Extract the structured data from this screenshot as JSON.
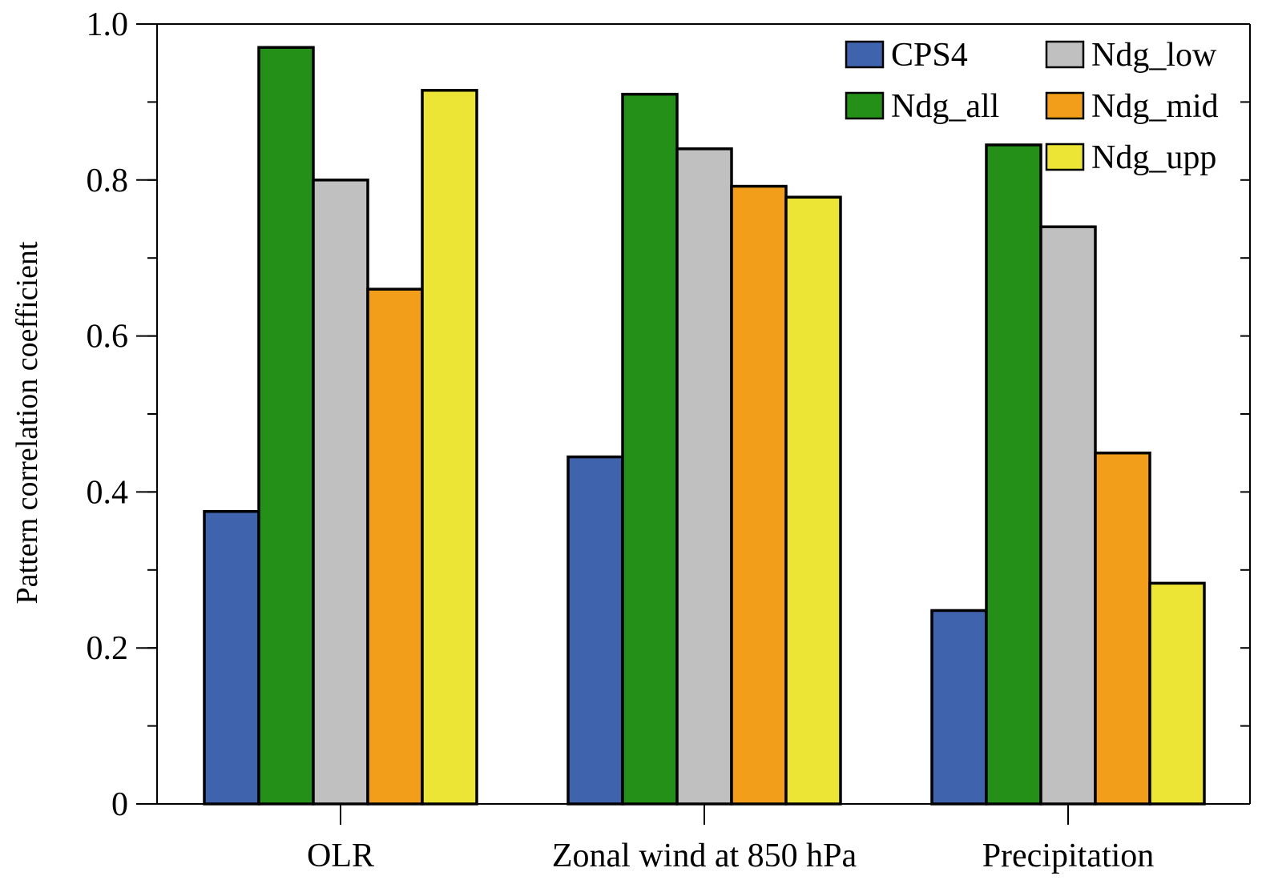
{
  "chart_data": {
    "type": "bar",
    "title": "",
    "xlabel": "",
    "ylabel": "Pattern correlation coefficient",
    "ylim": [
      0,
      1.0
    ],
    "yticks": [
      {
        "value": 0,
        "label": "0"
      },
      {
        "value": 0.2,
        "label": "0.2"
      },
      {
        "value": 0.4,
        "label": "0.4"
      },
      {
        "value": 0.6,
        "label": "0.6"
      },
      {
        "value": 0.8,
        "label": "0.8"
      },
      {
        "value": 1.0,
        "label": "1.0"
      }
    ],
    "minor_tick_step": 0.1,
    "grid": false,
    "legend_position": "top-right",
    "categories": [
      "OLR",
      "Zonal wind at 850 hPa",
      "Precipitation"
    ],
    "series": [
      {
        "name": "CPS4",
        "color": "#4063ae",
        "values": [
          0.375,
          0.445,
          0.248
        ]
      },
      {
        "name": "Ndg_all",
        "color": "#259018",
        "values": [
          0.97,
          0.91,
          0.845
        ]
      },
      {
        "name": "Ndg_low",
        "color": "#c0c0c0",
        "values": [
          0.8,
          0.84,
          0.74
        ]
      },
      {
        "name": "Ndg_mid",
        "color": "#f29e1a",
        "values": [
          0.66,
          0.792,
          0.45
        ]
      },
      {
        "name": "Ndg_upp",
        "color": "#ece535",
        "values": [
          0.915,
          0.778,
          0.283
        ]
      }
    ]
  }
}
